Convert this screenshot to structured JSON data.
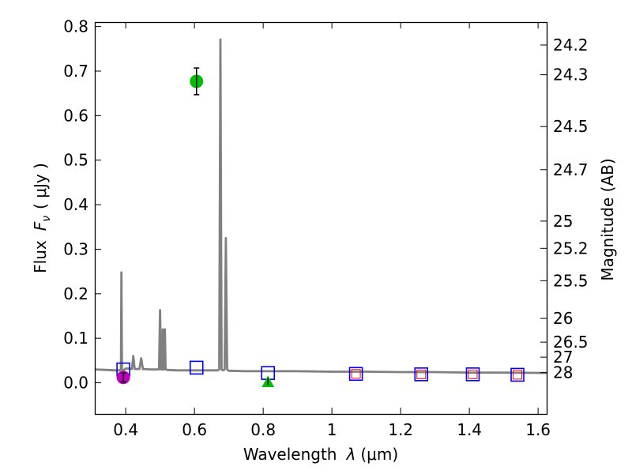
{
  "chart_data": {
    "type": "line",
    "xlabel_text": "Wavelength",
    "xlabel_sym": "λ",
    "xlabel_unit": "(μm)",
    "ylabel_text": "Flux",
    "ylabel_sym": "F",
    "ylabel_sub": "ν",
    "ylabel_unit": "( μJy )",
    "y2label": "Magnitude (AB)",
    "xlim": [
      0.31,
      1.625
    ],
    "ylim": [
      -0.07,
      0.81
    ],
    "xticks": [
      {
        "value": 0.4,
        "label": "0.4"
      },
      {
        "value": 0.6,
        "label": "0.6"
      },
      {
        "value": 0.8,
        "label": "0.8"
      },
      {
        "value": 1.0,
        "label": "1"
      },
      {
        "value": 1.2,
        "label": "1.2"
      },
      {
        "value": 1.4,
        "label": "1.4"
      },
      {
        "value": 1.6,
        "label": "1.6"
      }
    ],
    "yticks": [
      {
        "value": 0.0,
        "label": "0.0"
      },
      {
        "value": 0.1,
        "label": "0.1"
      },
      {
        "value": 0.2,
        "label": "0.2"
      },
      {
        "value": 0.3,
        "label": "0.3"
      },
      {
        "value": 0.4,
        "label": "0.4"
      },
      {
        "value": 0.5,
        "label": "0.5"
      },
      {
        "value": 0.6,
        "label": "0.6"
      },
      {
        "value": 0.7,
        "label": "0.7"
      },
      {
        "value": 0.8,
        "label": "0.8"
      }
    ],
    "mag_ticks": [
      {
        "mag": 24.2,
        "label": "24.2"
      },
      {
        "mag": 24.3,
        "label": "24.3"
      },
      {
        "mag": 24.5,
        "label": "24.5"
      },
      {
        "mag": 24.7,
        "label": "24.7"
      },
      {
        "mag": 25.0,
        "label": "25"
      },
      {
        "mag": 25.2,
        "label": "25.2"
      },
      {
        "mag": 25.5,
        "label": "25.5"
      },
      {
        "mag": 26.0,
        "label": "26"
      },
      {
        "mag": 26.5,
        "label": "26.5"
      },
      {
        "mag": 27.0,
        "label": "27"
      },
      {
        "mag": 28.0,
        "label": "28"
      }
    ],
    "model_sed": {
      "name": "model SED",
      "color": "#808080",
      "x": [
        0.31,
        0.34,
        0.37,
        0.382,
        0.386,
        0.3875,
        0.389,
        0.393,
        0.4,
        0.41,
        0.418,
        0.422,
        0.426,
        0.44,
        0.445,
        0.45,
        0.47,
        0.49,
        0.497,
        0.5,
        0.503,
        0.506,
        0.508,
        0.51,
        0.512,
        0.514,
        0.516,
        0.518,
        0.52,
        0.55,
        0.6,
        0.65,
        0.668,
        0.672,
        0.6755,
        0.679,
        0.683,
        0.688,
        0.6915,
        0.695,
        0.7,
        0.75,
        0.8,
        0.85,
        0.9,
        1.0,
        1.1,
        1.2,
        1.3,
        1.4,
        1.5,
        1.625
      ],
      "y": [
        0.03,
        0.029,
        0.028,
        0.028,
        0.03,
        0.248,
        0.03,
        0.028,
        0.032,
        0.032,
        0.031,
        0.06,
        0.031,
        0.031,
        0.055,
        0.031,
        0.03,
        0.03,
        0.03,
        0.163,
        0.03,
        0.03,
        0.12,
        0.03,
        0.03,
        0.12,
        0.03,
        0.03,
        0.029,
        0.028,
        0.028,
        0.028,
        0.028,
        0.03,
        0.771,
        0.03,
        0.028,
        0.03,
        0.325,
        0.03,
        0.027,
        0.026,
        0.026,
        0.026,
        0.026,
        0.025,
        0.025,
        0.024,
        0.024,
        0.023,
        0.023,
        0.022
      ]
    },
    "observed_photometry": [
      {
        "name": "observed point 1",
        "x": 0.393,
        "y": 0.012,
        "yerr": 0.01,
        "color": "#bf00bf",
        "marker": "circle"
      },
      {
        "name": "observed point 2",
        "x": 0.606,
        "y": 0.677,
        "yerr": 0.03,
        "color": "#00bf00",
        "marker": "circle"
      }
    ],
    "upper_limit": {
      "name": "upper limit",
      "x": 0.814,
      "y": 0.0,
      "color": "#00bf00",
      "marker": "triangle"
    },
    "model_photometry": {
      "name": "model photometry",
      "color": "#0000ff",
      "marker": "square",
      "x": [
        0.393,
        0.606,
        0.814,
        1.07,
        1.26,
        1.41,
        1.54
      ],
      "y": [
        0.03,
        0.034,
        0.022,
        0.02,
        0.019,
        0.019,
        0.018
      ]
    },
    "inner_points": {
      "name": "inner markers",
      "color": "#ff0000",
      "marker": "square",
      "x": [
        1.07,
        1.26,
        1.41,
        1.54
      ],
      "y": [
        0.02,
        0.019,
        0.019,
        0.018
      ]
    }
  }
}
